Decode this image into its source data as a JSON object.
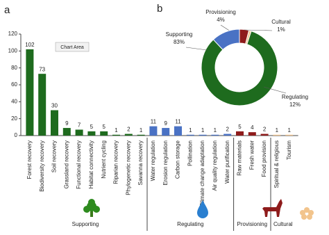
{
  "chart_data": [
    {
      "type": "bar",
      "label": "a",
      "tooltip": "Chart Area",
      "ylim": [
        0,
        120
      ],
      "yticks": [
        0,
        20,
        40,
        60,
        80,
        100,
        120
      ],
      "groups": [
        {
          "name": "Supporting",
          "color": "#1e6b1e",
          "categories": [
            "Forest recovery",
            "Biodiversity recovery",
            "Soil recovery",
            "Grassland recovery",
            "Functional recovery",
            "Habitat connectivity",
            "Nutrient cycling",
            "Riparian recovery",
            "Phylogenetic recovery",
            "Savanna recovery"
          ],
          "values": [
            102,
            73,
            30,
            9,
            7,
            5,
            5,
            1,
            2,
            1
          ]
        },
        {
          "name": "Regulating",
          "color": "#4a72c4",
          "categories": [
            "Water regulation",
            "Erosion regulation",
            "Carbon storage",
            "Pollination",
            "Climate change adaptation",
            "Air quality regulation",
            "Water purification"
          ],
          "values": [
            11,
            9,
            11,
            1,
            1,
            1,
            2
          ]
        },
        {
          "name": "Provisioning",
          "color": "#8e1b1b",
          "categories": [
            "Raw materials",
            "Fresh water",
            "Food provision"
          ],
          "values": [
            5,
            4,
            2
          ]
        },
        {
          "name": "Cultural",
          "color": "#f2c48c",
          "categories": [
            "Spiritual & religious",
            "Tourism"
          ],
          "values": [
            1,
            1
          ]
        }
      ]
    },
    {
      "type": "pie",
      "label": "b",
      "categories": [
        "Provisioning",
        "Cultural",
        "Supporting",
        "Regulating"
      ],
      "values": [
        4,
        1,
        83,
        12
      ],
      "value_labels": [
        "4%",
        "1%",
        "83%",
        "12%"
      ],
      "colors": [
        "#8e1b1b",
        "#f2c48c",
        "#1e6b1e",
        "#4a72c4"
      ]
    }
  ]
}
